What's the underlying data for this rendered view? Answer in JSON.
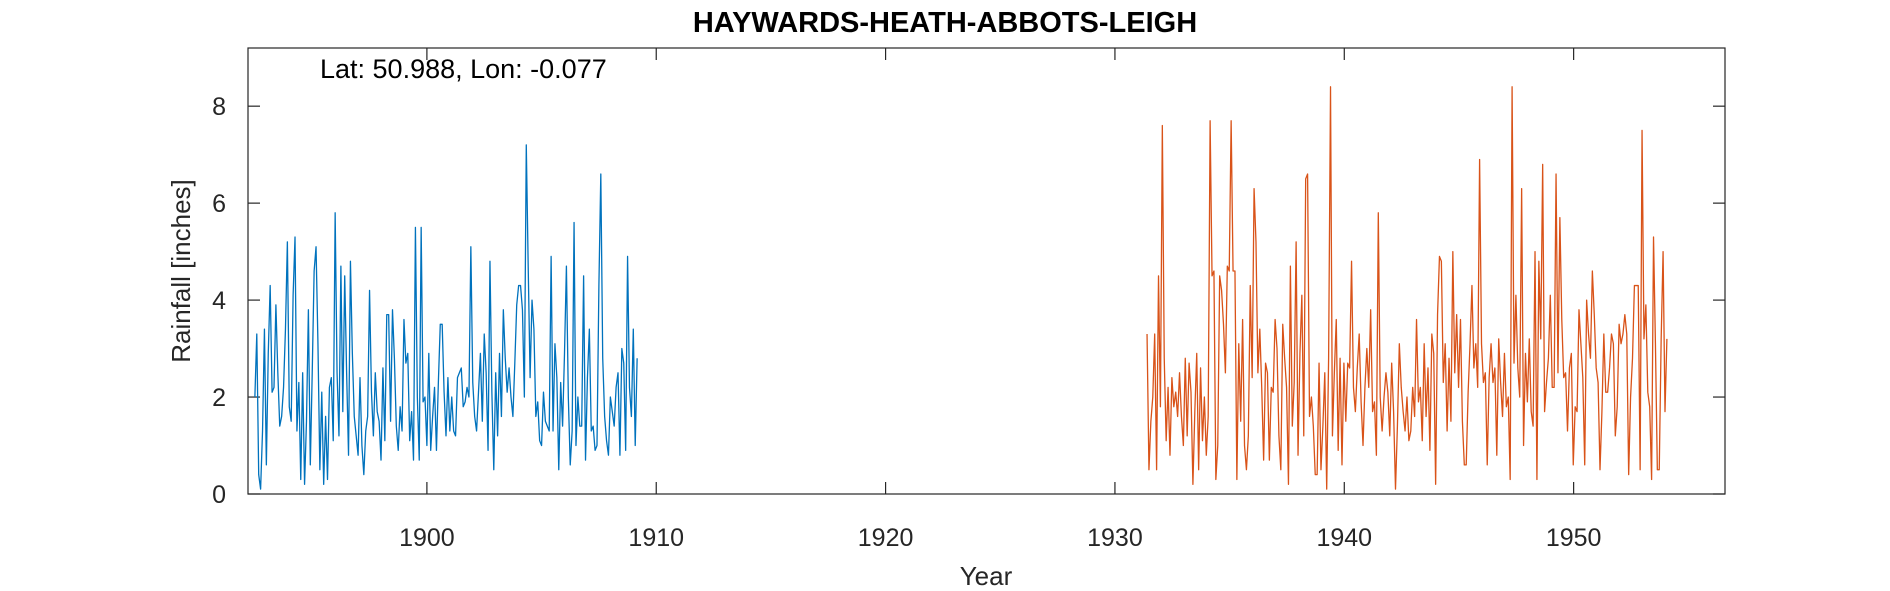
{
  "chart_data": {
    "type": "line",
    "title": "HAYWARDS-HEATH-ABBOTS-LEIGH",
    "annotation": "Lat: 50.988, Lon: -0.077",
    "xlabel": "Year",
    "ylabel": "Rainfall [inches]",
    "xlim": [
      1892.2,
      1956.6
    ],
    "ylim": [
      0,
      9.2
    ],
    "xticks": [
      1900,
      1910,
      1920,
      1930,
      1940,
      1950
    ],
    "yticks": [
      0,
      2,
      4,
      6,
      8
    ],
    "grid": false,
    "series": [
      {
        "color": "#0072BD",
        "x_start": 1892.5,
        "step": 0.0833333,
        "values": [
          2.0,
          3.3,
          0.4,
          0.1,
          1.3,
          3.4,
          0.6,
          2.9,
          4.3,
          2.1,
          2.2,
          3.9,
          2.5,
          1.4,
          1.6,
          2.2,
          3.4,
          5.2,
          1.8,
          1.5,
          4.1,
          5.3,
          1.3,
          2.3,
          0.3,
          2.5,
          0.2,
          1.5,
          3.8,
          0.6,
          2.5,
          4.6,
          5.1,
          3.1,
          0.5,
          2.1,
          0.2,
          1.6,
          0.3,
          2.2,
          2.4,
          1.1,
          5.8,
          2.5,
          1.2,
          4.7,
          1.7,
          4.5,
          2.5,
          0.8,
          4.8,
          2.9,
          1.6,
          1.2,
          0.8,
          2.4,
          1.0,
          0.4,
          1.3,
          1.6,
          4.2,
          2.1,
          1.2,
          2.5,
          1.7,
          1.5,
          0.7,
          2.6,
          1.1,
          3.7,
          3.7,
          1.5,
          3.8,
          2.8,
          1.4,
          0.9,
          1.8,
          1.3,
          3.6,
          2.7,
          2.9,
          1.1,
          1.7,
          0.7,
          5.5,
          2.0,
          0.7,
          5.5,
          1.9,
          2.0,
          1.0,
          2.9,
          0.9,
          1.6,
          2.2,
          0.9,
          2.3,
          3.5,
          3.5,
          2.1,
          1.2,
          2.4,
          1.3,
          2.0,
          1.3,
          1.2,
          2.4,
          2.5,
          2.6,
          1.8,
          1.9,
          2.2,
          2.0,
          5.1,
          2.3,
          1.6,
          1.3,
          2.1,
          2.9,
          1.5,
          3.3,
          2.5,
          0.9,
          4.8,
          2.1,
          0.5,
          2.5,
          1.2,
          2.9,
          1.6,
          3.8,
          2.8,
          2.1,
          2.6,
          2.0,
          1.6,
          2.7,
          3.9,
          4.3,
          4.3,
          3.8,
          2.0,
          7.2,
          4.7,
          2.4,
          4.0,
          3.4,
          1.6,
          1.9,
          1.1,
          1.0,
          2.1,
          1.5,
          1.4,
          1.3,
          4.9,
          1.3,
          3.1,
          2.4,
          0.5,
          2.3,
          1.4,
          2.9,
          4.7,
          2.0,
          0.6,
          1.3,
          5.6,
          1.0,
          2.0,
          1.4,
          1.4,
          4.5,
          0.7,
          2.4,
          3.4,
          1.3,
          1.4,
          0.9,
          1.0,
          4.3,
          6.6,
          2.8,
          1.6,
          1.1,
          0.8,
          2.0,
          1.7,
          1.4,
          2.2,
          2.5,
          0.8,
          3.0,
          2.7,
          0.9,
          4.9,
          2.2,
          1.6,
          3.4,
          1.0,
          2.8
        ]
      },
      {
        "color": "#D95319",
        "x_start": 1931.4,
        "step": 0.0833333,
        "values": [
          3.3,
          0.5,
          1.5,
          2.0,
          3.3,
          0.5,
          4.5,
          1.8,
          7.6,
          2.8,
          1.1,
          2.2,
          0.8,
          2.4,
          1.8,
          2.1,
          1.6,
          2.5,
          1.6,
          1.0,
          2.8,
          1.2,
          2.7,
          2.1,
          0.2,
          1.7,
          2.9,
          0.5,
          2.6,
          1.1,
          2.0,
          0.8,
          1.6,
          7.7,
          4.5,
          4.6,
          0.3,
          1.0,
          4.5,
          4.2,
          3.5,
          2.5,
          4.7,
          4.6,
          7.7,
          4.6,
          4.6,
          0.3,
          3.1,
          1.5,
          3.6,
          1.0,
          0.5,
          1.2,
          4.3,
          2.4,
          6.3,
          5.2,
          2.5,
          3.4,
          2.2,
          0.7,
          2.7,
          2.5,
          0.7,
          2.2,
          2.1,
          3.6,
          3.0,
          1.2,
          0.5,
          3.5,
          2.8,
          2.2,
          0.2,
          4.7,
          1.4,
          2.3,
          5.2,
          0.8,
          2.9,
          4.1,
          1.2,
          6.5,
          6.6,
          1.6,
          2.0,
          1.4,
          0.4,
          0.4,
          2.7,
          0.5,
          1.4,
          2.5,
          0.1,
          2.8,
          8.4,
          1.2,
          2.5,
          3.6,
          0.9,
          2.8,
          0.6,
          2.7,
          1.5,
          2.7,
          2.6,
          4.8,
          2.2,
          1.7,
          2.6,
          3.3,
          1.9,
          1.0,
          2.2,
          3.0,
          2.2,
          3.8,
          1.7,
          1.9,
          0.8,
          5.8,
          2.0,
          1.3,
          2.0,
          2.5,
          2.1,
          1.2,
          2.7,
          1.7,
          0.1,
          1.4,
          3.1,
          2.2,
          1.7,
          1.3,
          2.0,
          1.1,
          1.3,
          2.2,
          1.6,
          3.6,
          1.9,
          2.2,
          1.1,
          3.1,
          1.6,
          2.6,
          0.9,
          3.3,
          2.9,
          0.2,
          3.7,
          4.9,
          4.8,
          2.3,
          3.1,
          1.3,
          2.8,
          1.5,
          5.0,
          2.5,
          3.7,
          2.2,
          3.6,
          1.5,
          0.6,
          0.6,
          2.1,
          3.1,
          4.3,
          2.6,
          3.1,
          2.2,
          6.9,
          3.1,
          2.3,
          2.5,
          0.6,
          2.4,
          3.1,
          2.3,
          2.6,
          0.8,
          3.2,
          2.3,
          1.6,
          2.9,
          1.8,
          2.0,
          0.3,
          8.4,
          2.7,
          4.1,
          2.6,
          2.0,
          6.3,
          1.0,
          2.9,
          1.9,
          3.2,
          1.7,
          1.4,
          5.0,
          0.3,
          4.8,
          3.2,
          6.8,
          1.7,
          2.3,
          2.8,
          4.1,
          2.2,
          2.2,
          6.6,
          2.5,
          5.7,
          3.6,
          2.4,
          2.5,
          1.3,
          2.6,
          2.9,
          0.6,
          1.8,
          1.7,
          3.8,
          3.1,
          2.4,
          0.6,
          4.0,
          3.3,
          2.8,
          4.6,
          3.7,
          2.6,
          2.3,
          0.5,
          1.7,
          3.3,
          2.1,
          2.1,
          2.6,
          3.3,
          3.1,
          1.2,
          1.8,
          3.5,
          3.1,
          3.3,
          3.7,
          3.3,
          0.4,
          2.0,
          2.8,
          4.3,
          4.3,
          4.3,
          0.5,
          7.5,
          3.2,
          3.9,
          2.1,
          1.8,
          0.3,
          5.3,
          3.1,
          0.5,
          0.5,
          3.2,
          5.0,
          1.7,
          3.2
        ]
      }
    ]
  }
}
